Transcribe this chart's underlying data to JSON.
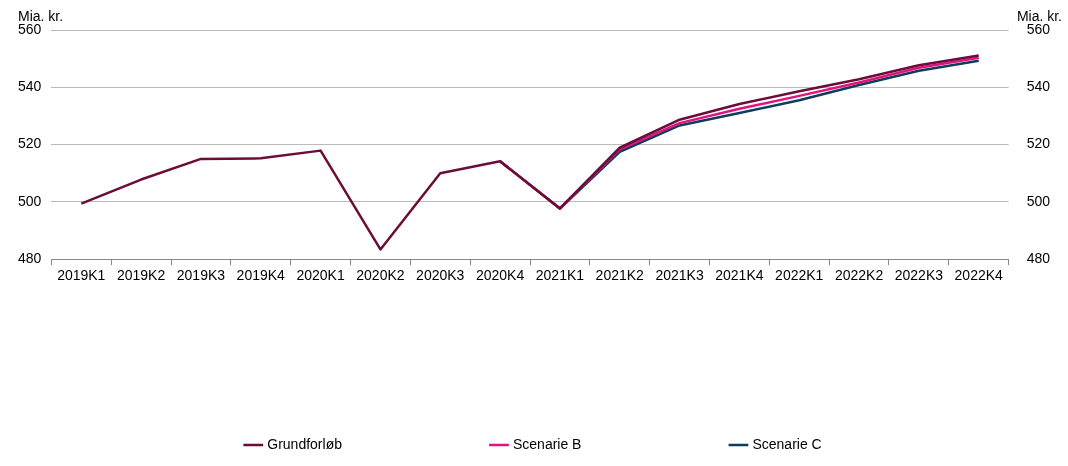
{
  "chart_data": {
    "type": "line",
    "ylabel": "Mia. kr.",
    "y2label": "Mia. kr.",
    "categories": [
      "2019K1",
      "2019K2",
      "2019K3",
      "2019K4",
      "2020K1",
      "2020K2",
      "2020K3",
      "2020K4",
      "2021K1",
      "2021K2",
      "2021K3",
      "2021K4",
      "2022K1",
      "2022K2",
      "2022K3",
      "2022K4"
    ],
    "series": [
      {
        "name": "Grundforløb",
        "color": "#6b0d38",
        "values": [
          499.4,
          507.8,
          515,
          515.2,
          517.9,
          483.4,
          510,
          514.2,
          497.7,
          518.9,
          528.7,
          534.2,
          538.6,
          542.8,
          547.7,
          551.1
        ]
      },
      {
        "name": "Scenarie B",
        "color": "#e0137f",
        "values": [
          null,
          null,
          null,
          null,
          null,
          null,
          null,
          514.2,
          497.7,
          518.3,
          527.5,
          532.5,
          537,
          541.7,
          546.8,
          550.3
        ]
      },
      {
        "name": "Scenarie C",
        "color": "#0f3d5c",
        "values": [
          null,
          null,
          null,
          null,
          null,
          null,
          null,
          514.2,
          497.7,
          517.5,
          526.7,
          531,
          535.5,
          540.8,
          545.8,
          549.3
        ]
      }
    ],
    "ylim": [
      480,
      560
    ],
    "yticks": [
      480,
      500,
      520,
      540,
      560
    ],
    "y2lim": [
      480,
      560
    ],
    "y2ticks": [
      480,
      500,
      520,
      540,
      560
    ],
    "grid": "y",
    "legend": "bottom",
    "marker": "none",
    "line_style": "solid"
  }
}
